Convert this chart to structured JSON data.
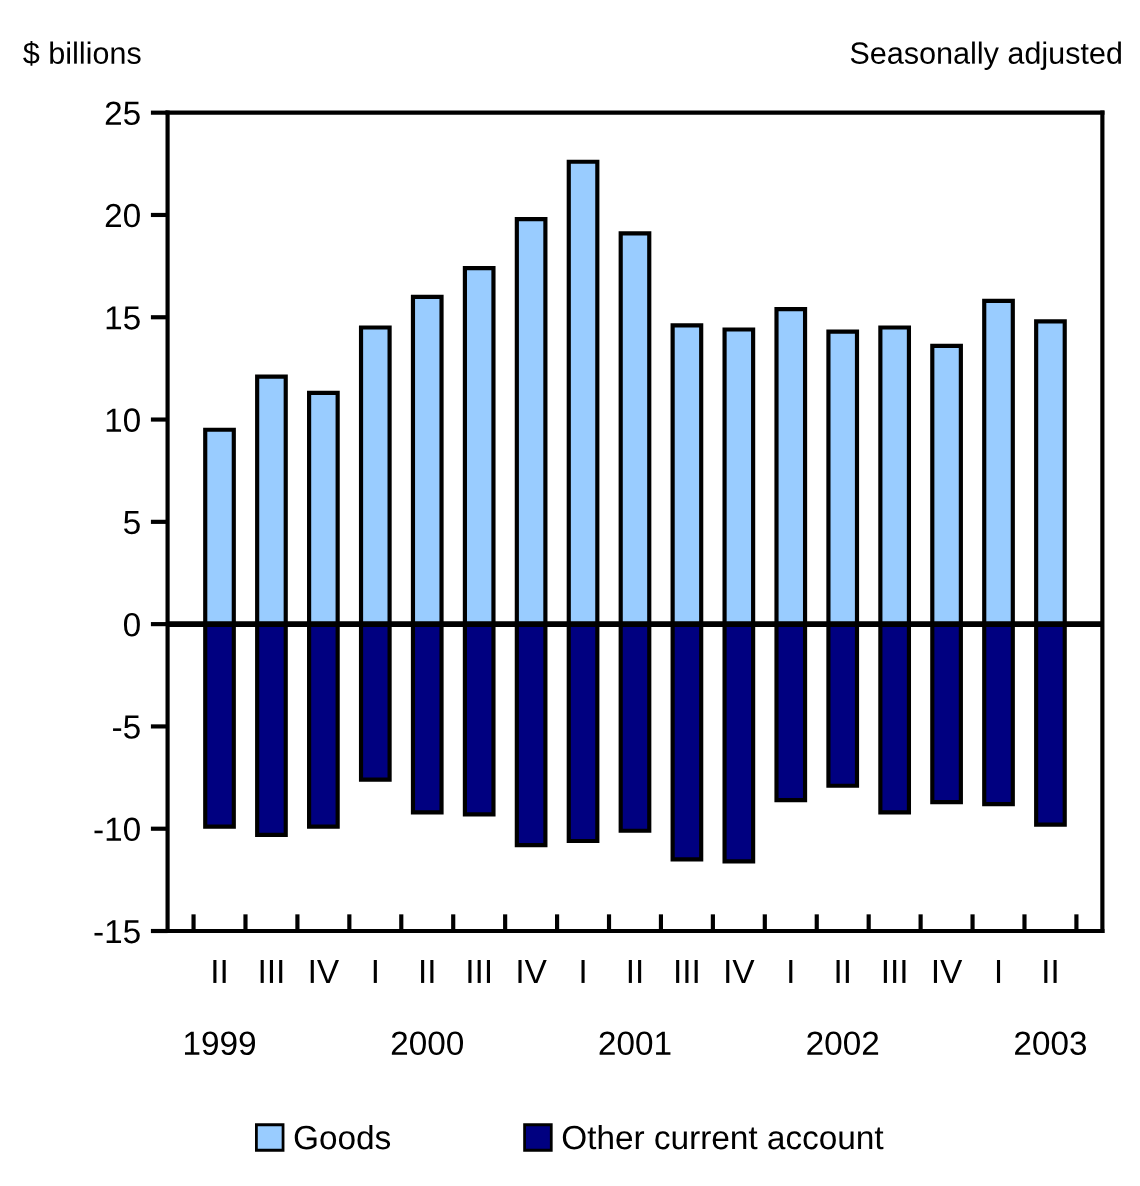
{
  "chart_data": {
    "type": "bar",
    "ylabel": "$ billions",
    "subtitle": "Seasonally adjusted",
    "categories": [
      "II\n\n1999",
      "III",
      "IV",
      "I",
      "II\n\n2000",
      "III",
      "IV",
      "I",
      "II\n\n2001",
      "III",
      "IV",
      "I",
      "II\n\n2002",
      "III",
      "IV",
      "I",
      "II\n\n2003"
    ],
    "stacked": true,
    "series": [
      {
        "name": "Goods",
        "color": "#99ccff",
        "values": [
          9.5,
          12.1,
          11.3,
          14.5,
          16.0,
          17.4,
          19.8,
          22.6,
          19.1,
          14.6,
          14.4,
          15.4,
          14.3,
          14.5,
          13.6,
          15.8,
          14.8
        ]
      },
      {
        "name": "Other current account",
        "color": "#000080",
        "values": [
          -9.9,
          -10.3,
          -9.9,
          -7.6,
          -9.2,
          -9.3,
          -10.8,
          -10.6,
          -10.1,
          -11.5,
          -11.6,
          -8.6,
          -7.9,
          -9.2,
          -8.7,
          -8.8,
          -9.8
        ]
      }
    ],
    "ylim": [
      -15,
      25
    ],
    "yticks": [
      -15,
      -10,
      -5,
      0,
      5,
      10,
      15,
      20,
      25
    ],
    "ref_lines": [
      {
        "axis": "y",
        "value": 0,
        "color": "#000000"
      }
    ],
    "grid": false,
    "legend": "bottom"
  }
}
